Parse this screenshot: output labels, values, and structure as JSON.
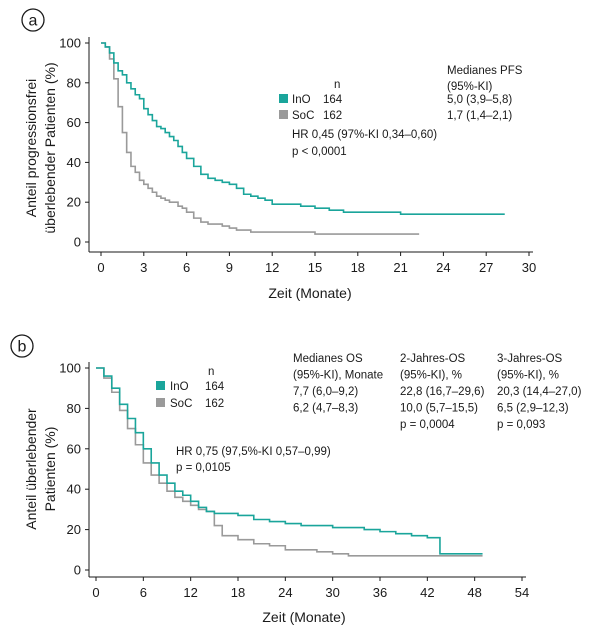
{
  "chart_data": [
    {
      "type": "line",
      "panel_label": "a",
      "xlabel": "Zeit (Monate)",
      "ylabel_lines": [
        "Anteil progressionsfrei",
        "überlebender Patienten (%)"
      ],
      "xlim": [
        0,
        30
      ],
      "ylim": [
        0,
        100
      ],
      "xticks": [
        0,
        3,
        6,
        9,
        12,
        15,
        18,
        21,
        24,
        27,
        30
      ],
      "yticks": [
        0,
        20,
        40,
        60,
        80,
        100
      ],
      "grid": false,
      "series": [
        {
          "name": "InO",
          "color": "#1aa59b",
          "x": [
            0,
            0.3,
            0.6,
            0.9,
            1.2,
            1.5,
            1.8,
            2.1,
            2.4,
            2.7,
            3.0,
            3.3,
            3.6,
            3.9,
            4.2,
            4.5,
            4.8,
            5.1,
            5.4,
            5.7,
            6.0,
            6.5,
            7.0,
            7.5,
            8.0,
            8.5,
            9.0,
            9.5,
            10.0,
            10.5,
            11.0,
            11.5,
            12.0,
            13.0,
            14.0,
            15.0,
            16.0,
            17.0,
            18.0,
            19.0,
            20.0,
            21.0,
            22.0,
            23.0,
            24.0,
            25.0,
            26.0,
            27.0,
            28.3
          ],
          "y": [
            100,
            98,
            95,
            90,
            86,
            84,
            80,
            77,
            74,
            72,
            67,
            64,
            61,
            58,
            57,
            55,
            53,
            51,
            48,
            45,
            42,
            38,
            34,
            32,
            31,
            30,
            29,
            27,
            24,
            23,
            22,
            21,
            19,
            19,
            18,
            17,
            16,
            15,
            15,
            15,
            15,
            14,
            14,
            14,
            14,
            14,
            14,
            14,
            14
          ]
        },
        {
          "name": "SoC",
          "color": "#9a9a9a",
          "x": [
            0,
            0.3,
            0.6,
            0.9,
            1.2,
            1.5,
            1.8,
            2.1,
            2.4,
            2.7,
            3.0,
            3.3,
            3.6,
            3.9,
            4.2,
            4.5,
            4.8,
            5.1,
            5.4,
            5.7,
            6.0,
            6.5,
            7.0,
            7.5,
            8.0,
            8.5,
            9.0,
            9.5,
            10.0,
            10.5,
            11.0,
            11.5,
            12.0,
            13.0,
            14.0,
            15.0,
            16.0,
            17.0,
            18.0,
            19.0,
            20.0,
            21.0,
            22.3
          ],
          "y": [
            100,
            98,
            92,
            82,
            68,
            55,
            45,
            38,
            35,
            31,
            29,
            27,
            25,
            23,
            22,
            21,
            20,
            20,
            18,
            17,
            15,
            12,
            10,
            9,
            9,
            8,
            7,
            6,
            6,
            5,
            5,
            5,
            5,
            5,
            5,
            4,
            4,
            4,
            4,
            4,
            4,
            4,
            4
          ]
        }
      ],
      "legend": {
        "header": "n",
        "right_header": [
          "Medianes PFS",
          "(95%-KI)"
        ],
        "rows": [
          {
            "name": "InO",
            "color": "#1aa59b",
            "n": "164",
            "value": "5,0 (3,9–5,8)"
          },
          {
            "name": "SoC",
            "color": "#9a9a9a",
            "n": "162",
            "value": "1,7 (1,4–2,1)"
          }
        ]
      },
      "annotation": [
        "HR 0,45 (97%-KI 0,34–0,60)",
        "p < 0,0001"
      ]
    },
    {
      "type": "line",
      "panel_label": "b",
      "xlabel": "Zeit (Monate)",
      "ylabel_lines": [
        "Anteil überlebender",
        "Patienten (%)"
      ],
      "xlim": [
        0,
        54
      ],
      "ylim": [
        0,
        100
      ],
      "xticks": [
        0,
        6,
        12,
        18,
        24,
        30,
        36,
        42,
        48,
        54
      ],
      "yticks": [
        0,
        20,
        40,
        60,
        80,
        100
      ],
      "grid": false,
      "series": [
        {
          "name": "InO",
          "color": "#1aa59b",
          "x": [
            0,
            1,
            2,
            3,
            4,
            5,
            6,
            7,
            8,
            9,
            10,
            11,
            12,
            13,
            14,
            15,
            16,
            18,
            20,
            22,
            24,
            26,
            28,
            30,
            32,
            34,
            36,
            38,
            40,
            42,
            43.5,
            43.6,
            45,
            47,
            49
          ],
          "y": [
            100,
            96,
            90,
            82,
            75,
            68,
            60,
            53,
            47,
            43,
            39,
            37,
            34,
            31,
            29,
            28,
            28,
            27,
            25,
            24,
            23,
            22,
            22,
            21,
            21,
            20,
            19,
            18,
            17,
            16,
            16,
            8,
            8,
            8,
            8
          ]
        },
        {
          "name": "SoC",
          "color": "#9a9a9a",
          "x": [
            0,
            1,
            2,
            3,
            4,
            5,
            6,
            7,
            8,
            9,
            10,
            11,
            12,
            13,
            14,
            15,
            16,
            18,
            20,
            22,
            24,
            26,
            28,
            30,
            32,
            34,
            36,
            38,
            40,
            42,
            44,
            46,
            49
          ],
          "y": [
            100,
            95,
            88,
            79,
            70,
            62,
            53,
            47,
            43,
            39,
            36,
            34,
            32,
            30,
            29,
            22,
            17,
            15,
            13,
            12,
            10,
            10,
            9,
            8,
            7,
            7,
            7,
            7,
            7,
            7,
            7,
            7,
            7
          ]
        }
      ],
      "legend": {
        "header": "n",
        "rows": [
          {
            "name": "InO",
            "color": "#1aa59b",
            "n": "164"
          },
          {
            "name": "SoC",
            "color": "#9a9a9a",
            "n": "162"
          }
        ]
      },
      "stat_columns": [
        {
          "lines": [
            "Medianes OS",
            "(95%-KI), Monate",
            "7,7 (6,0–9,2)",
            "6,2 (4,7–8,3)"
          ]
        },
        {
          "lines": [
            "2-Jahres-OS",
            "(95%-KI), %",
            "22,8 (16,7–29,6)",
            "10,0 (5,7–15,5)",
            "p = 0,0004"
          ]
        },
        {
          "lines": [
            "3-Jahres-OS",
            "(95%-KI), %",
            "20,3 (14,4–27,0)",
            "6,5 (2,9–12,3)",
            "p = 0,093"
          ]
        }
      ],
      "annotation": [
        "HR 0,75 (97,5%-KI 0,57–0,99)",
        "p = 0,0105"
      ]
    }
  ]
}
